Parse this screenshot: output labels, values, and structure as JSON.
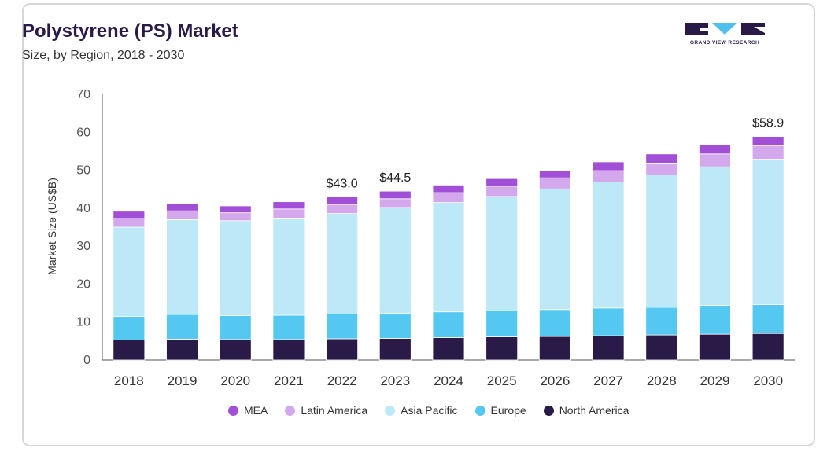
{
  "header": {
    "title": "Polystyrene (PS) Market",
    "subtitle": "Size, by Region, 2018 - 2030",
    "logo_text": "GRAND VIEW RESEARCH"
  },
  "colors": {
    "MEA": "#a24fd8",
    "Latin America": "#d3a8ec",
    "Asia Pacific": "#bde8f7",
    "Europe": "#55c8f2",
    "North America": "#2a1a48",
    "logo": "#2a1a48",
    "logo_accent": "#4fc0ee"
  },
  "chart_data": {
    "type": "bar",
    "stacked": true,
    "title": "Polystyrene (PS) Market",
    "subtitle": "Size, by Region, 2018 - 2030",
    "xlabel": "",
    "ylabel": "Market Size (US$B)",
    "ylim": [
      0,
      70
    ],
    "yticks": [
      "0",
      "10",
      "20",
      "30",
      "40",
      "50",
      "60",
      "70"
    ],
    "categories": [
      "2018",
      "2019",
      "2020",
      "2021",
      "2022",
      "2023",
      "2024",
      "2025",
      "2026",
      "2027",
      "2028",
      "2029",
      "2030"
    ],
    "series": [
      {
        "name": "North America",
        "values": [
          5.3,
          5.5,
          5.4,
          5.4,
          5.6,
          5.7,
          5.9,
          6.1,
          6.2,
          6.4,
          6.6,
          6.8,
          7.0
        ]
      },
      {
        "name": "Europe",
        "values": [
          6.2,
          6.5,
          6.3,
          6.4,
          6.5,
          6.6,
          6.8,
          6.9,
          7.1,
          7.3,
          7.3,
          7.6,
          7.6
        ]
      },
      {
        "name": "Asia Pacific",
        "values": [
          23.5,
          25.0,
          25.0,
          25.6,
          26.5,
          27.9,
          28.8,
          30.1,
          31.8,
          33.2,
          34.9,
          36.5,
          38.3
        ]
      },
      {
        "name": "Latin America",
        "values": [
          2.3,
          2.3,
          2.1,
          2.4,
          2.4,
          2.3,
          2.6,
          2.7,
          2.9,
          3.0,
          3.1,
          3.4,
          3.6
        ]
      },
      {
        "name": "MEA",
        "values": [
          1.9,
          1.9,
          1.8,
          1.9,
          2.0,
          2.0,
          2.0,
          2.0,
          2.0,
          2.3,
          2.4,
          2.5,
          2.4
        ]
      }
    ],
    "data_labels": [
      {
        "category": "2022",
        "text": "$43.0",
        "value": 43.0
      },
      {
        "category": "2023",
        "text": "$44.5",
        "value": 44.5
      },
      {
        "category": "2030",
        "text": "$58.9",
        "value": 58.9
      }
    ],
    "legend": {
      "placement": "bottom",
      "order": [
        "MEA",
        "Latin America",
        "Asia Pacific",
        "Europe",
        "North America"
      ]
    },
    "grid": false
  }
}
